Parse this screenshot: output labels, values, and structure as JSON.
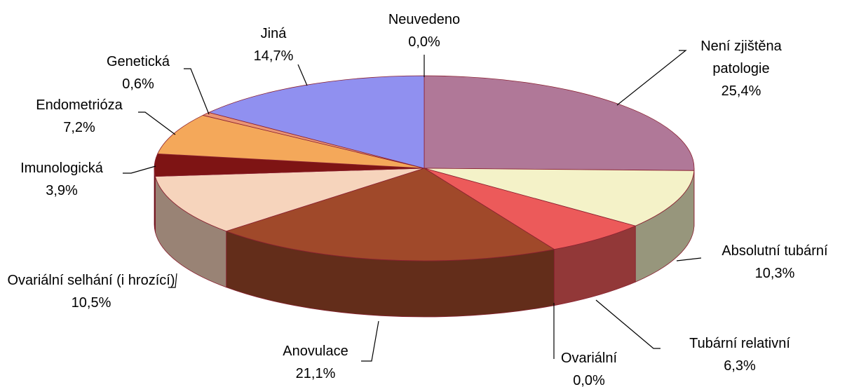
{
  "chart_data": {
    "type": "pie3d",
    "categories": [
      "Neuvedeno",
      "Není zjištěna patologie",
      "Absolutní tubární",
      "Tubární relativní",
      "Ovariální",
      "Anovulace",
      "Ovariální selhání (i hrozící)",
      "Imunologická",
      "Endometrióza",
      "Genetická",
      "Jiná"
    ],
    "values": [
      0.0,
      25.4,
      10.3,
      6.3,
      0.0,
      21.1,
      10.5,
      3.9,
      7.2,
      0.6,
      14.7
    ],
    "value_labels": [
      "0,0%",
      "25,4%",
      "10,3%",
      "6,3%",
      "0,0%",
      "21,1%",
      "10,5%",
      "3,9%",
      "7,2%",
      "0,6%",
      "14,7%"
    ],
    "colors": [
      "#7070a0",
      "#b07898",
      "#f4f2c8",
      "#ec5a5a",
      "#a04040",
      "#a0492a",
      "#f6d4bc",
      "#7e1414",
      "#f4a85a",
      "#ea9474",
      "#9090f0"
    ]
  }
}
